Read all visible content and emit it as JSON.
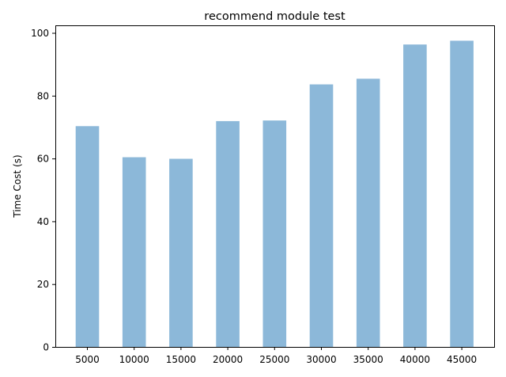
{
  "chart_data": {
    "type": "bar",
    "title": "recommend module test",
    "xlabel": "",
    "ylabel": "Time Cost (s)",
    "categories": [
      "5000",
      "10000",
      "15000",
      "20000",
      "25000",
      "30000",
      "35000",
      "40000",
      "45000"
    ],
    "values": [
      70.3,
      60.4,
      59.9,
      71.9,
      72.1,
      83.6,
      85.4,
      96.3,
      97.5
    ],
    "ylim": [
      0,
      102.4
    ],
    "yticks": [
      "0",
      "20",
      "40",
      "60",
      "80",
      "100"
    ],
    "bar_color": "#8cb8d9",
    "grid": false,
    "legend": false
  }
}
